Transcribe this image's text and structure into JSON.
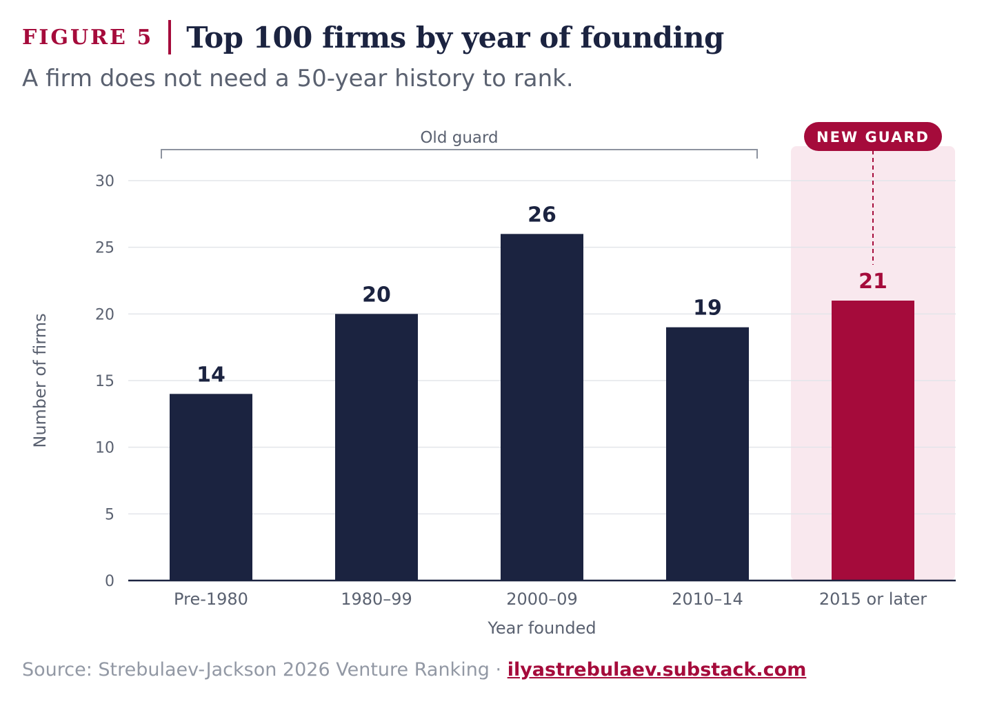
{
  "figure_label": "FIGURE 5",
  "title": "Top 100 firms by year of founding",
  "subtitle": "A firm does not need a 50-year history to rank.",
  "source_text": "Source: Strebulaev-Jackson 2026 Venture Ranking · ",
  "source_link": "ilyastrebulaev.substack.com",
  "colors": {
    "old": "#1b2340",
    "new": "#a50b3b",
    "new_band": "#f9e8ee",
    "grid": "#e3e5ea",
    "muted": "#5a6170"
  },
  "chart_data": {
    "type": "bar",
    "categories": [
      "Pre-1980",
      "1980–99",
      "2000–09",
      "2010–14",
      "2015 or later"
    ],
    "values": [
      14,
      20,
      26,
      19,
      21
    ],
    "highlight_index": 4,
    "xlabel": "Year founded",
    "ylabel": "Number of firms",
    "ylim": [
      0,
      30
    ],
    "yticks": [
      0,
      5,
      10,
      15,
      20,
      25,
      30
    ],
    "grid": true,
    "annotations": {
      "old_guard": {
        "label": "Old guard",
        "from_category": 0,
        "to_category": 3
      },
      "new_guard": {
        "label": "NEW GUARD",
        "category": 4
      }
    }
  }
}
